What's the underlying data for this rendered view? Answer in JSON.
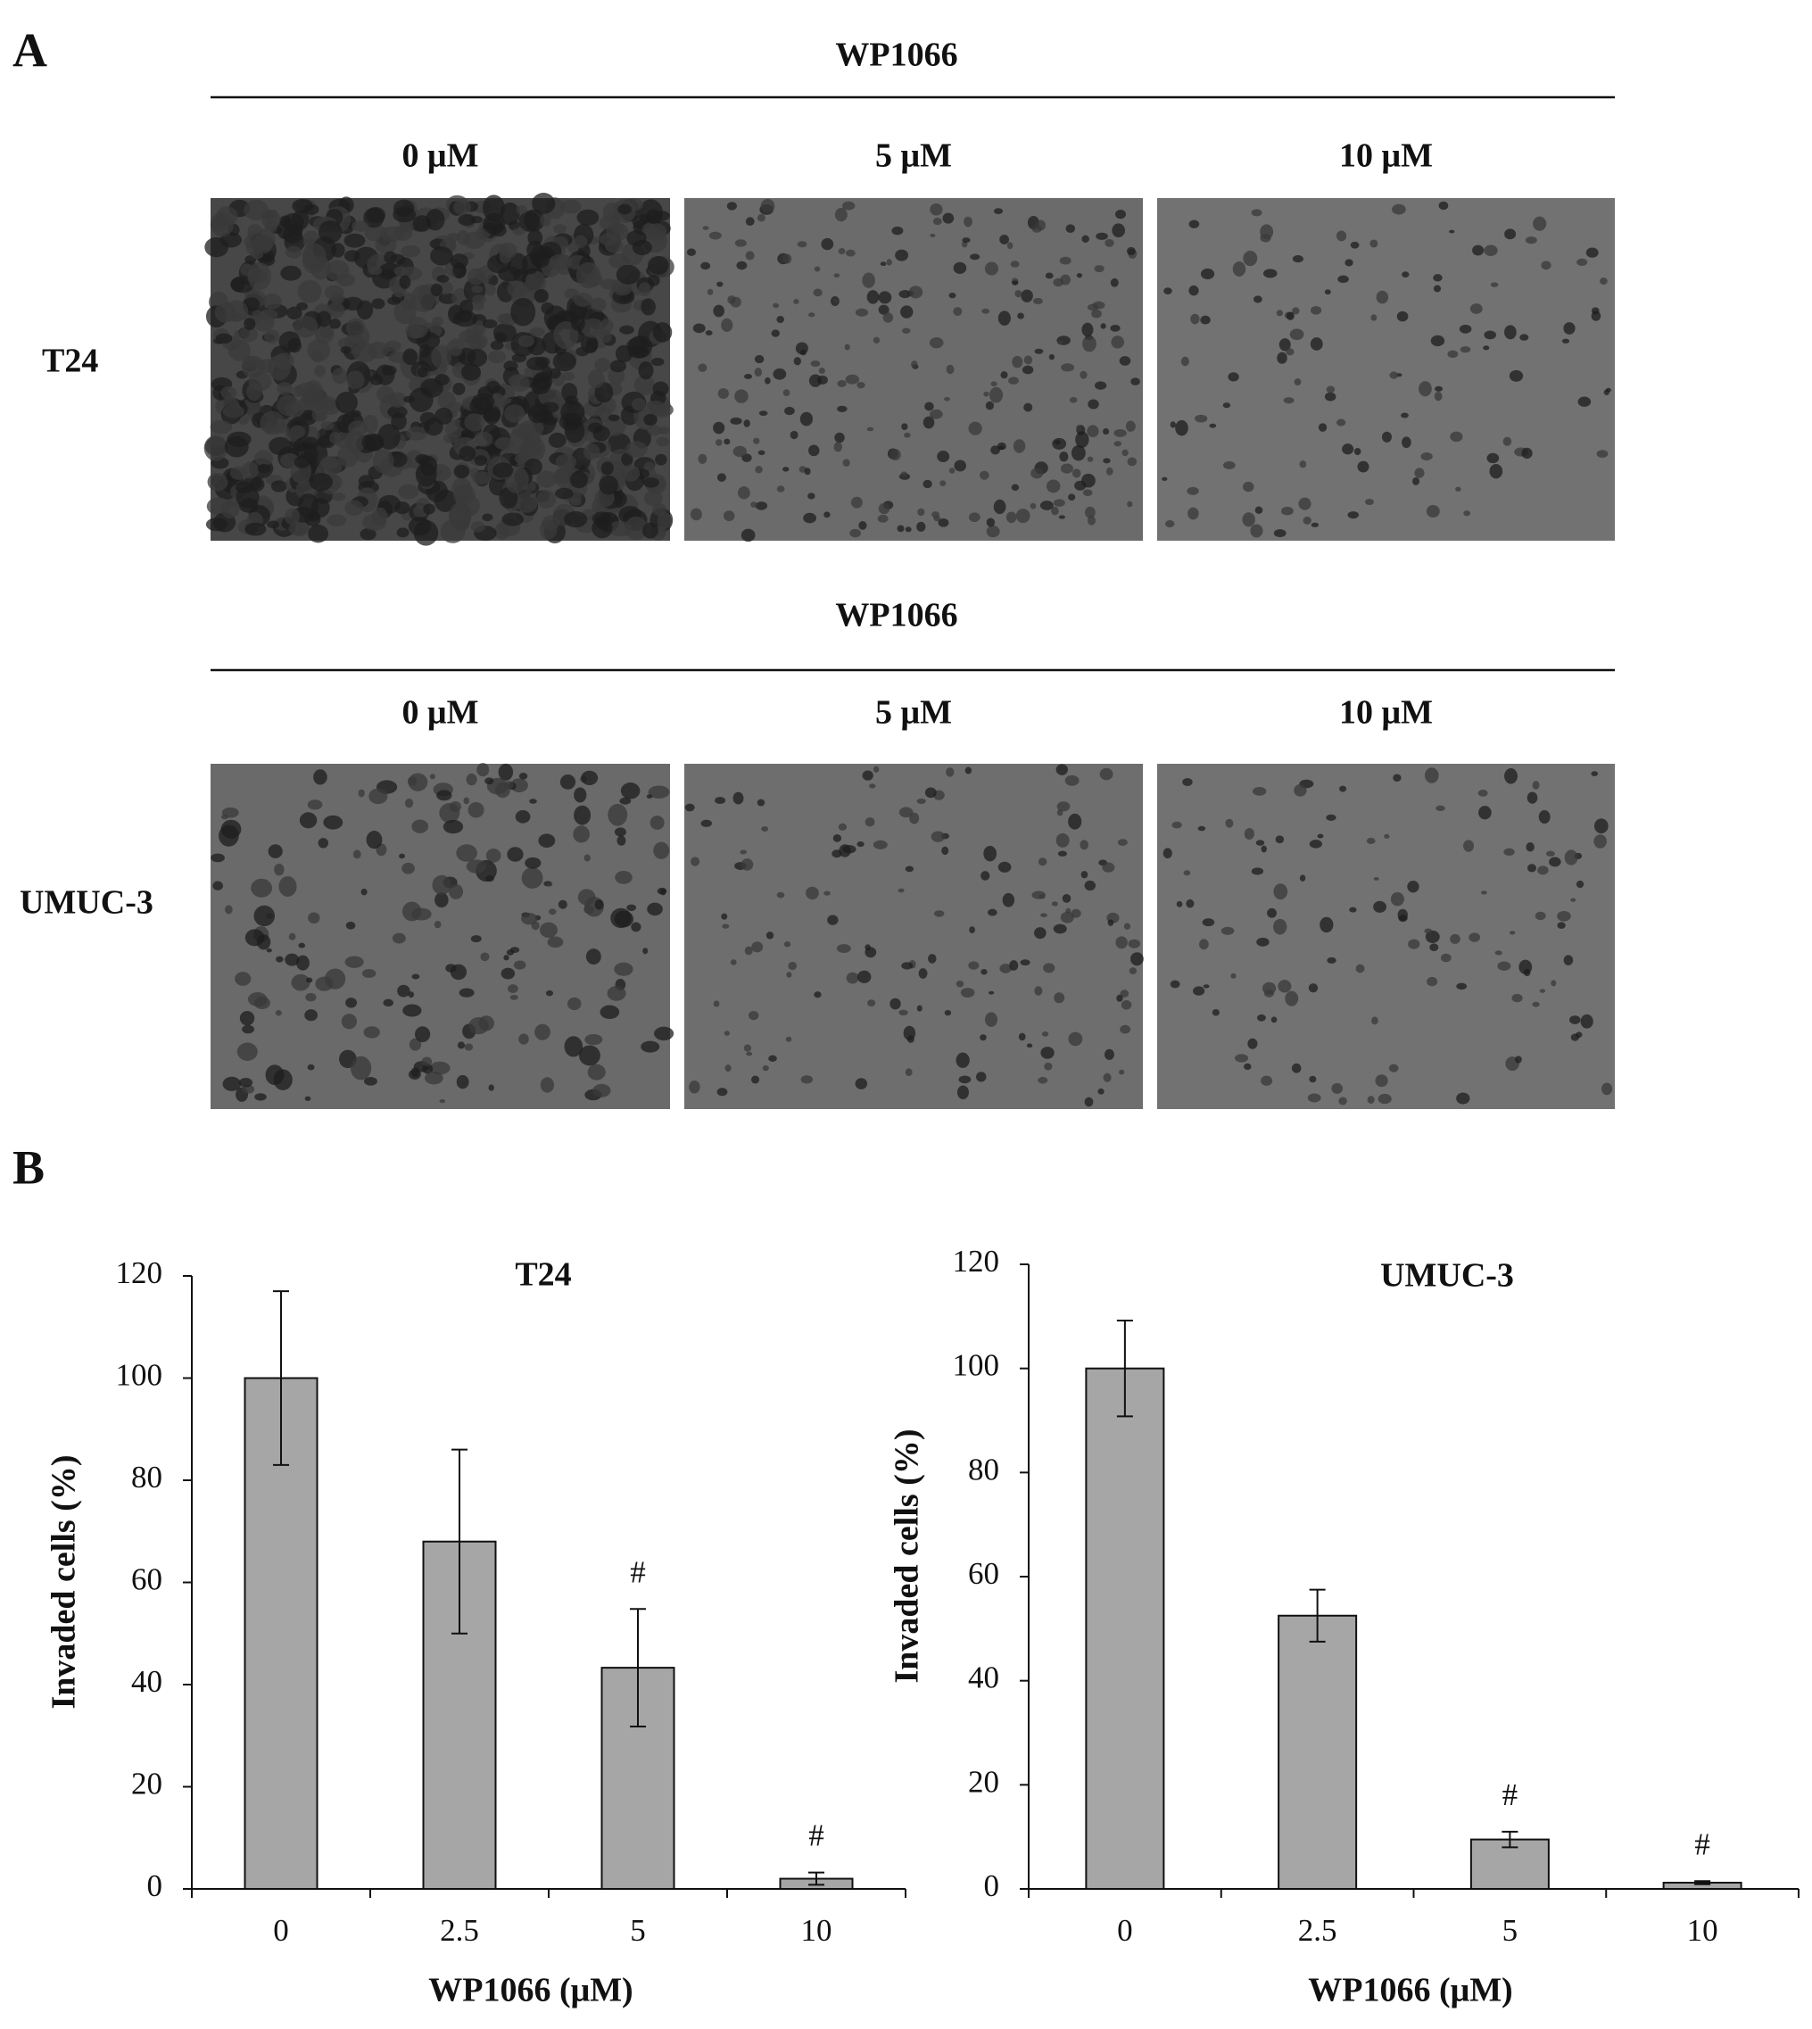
{
  "panel_labels": [
    "A",
    "B"
  ],
  "panel_a": {
    "rows": [
      {
        "treatment": "WP1066",
        "doses": [
          "0 μM",
          "5 μM",
          "10 μM"
        ],
        "cell_line": "T24"
      },
      {
        "treatment": "WP1066",
        "doses": [
          "0 μM",
          "5 μM",
          "10 μM"
        ],
        "cell_line": "UMUC-3"
      }
    ]
  },
  "chart_data": [
    {
      "type": "bar",
      "title": "T24",
      "x_label": "WP1066 (μM)",
      "y_label": "Invaded cells (%)",
      "categories": [
        "0",
        "2.5",
        "5",
        "10"
      ],
      "values": [
        100,
        68,
        43.3,
        2
      ],
      "errors": [
        17,
        18,
        11.5,
        1.2
      ],
      "markers": [
        null,
        null,
        "#",
        "#"
      ],
      "color": "#a6a6a6",
      "ylim": [
        0,
        120
      ],
      "yticks": [
        0,
        20,
        40,
        60,
        80,
        100,
        120
      ],
      "grid": false
    },
    {
      "type": "bar",
      "title": "UMUC-3",
      "x_label": "WP1066 (μM)",
      "y_label": "Invaded cells (%)",
      "categories": [
        "0",
        "2.5",
        "5",
        "10"
      ],
      "values": [
        100,
        52.5,
        9.5,
        1.2
      ],
      "errors": [
        9.2,
        5,
        1.5,
        0.3
      ],
      "markers": [
        null,
        null,
        "#",
        "#"
      ],
      "color": "#a6a6a6",
      "ylim": [
        0,
        120
      ],
      "yticks": [
        0,
        20,
        40,
        60,
        80,
        100,
        120
      ],
      "grid": false
    }
  ]
}
